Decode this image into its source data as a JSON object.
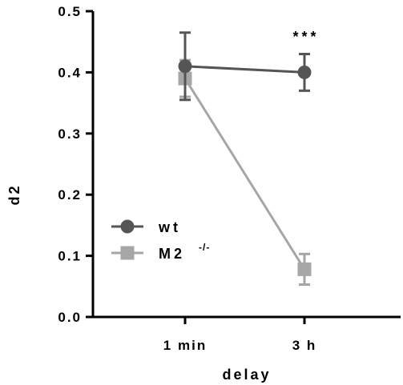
{
  "chart_data": {
    "type": "line",
    "categories": [
      "1 min",
      "3 h"
    ],
    "xlabel": "delay",
    "ylabel": "d2",
    "ylim": [
      0,
      0.5
    ],
    "yticks": [
      "0.0",
      "0.1",
      "0.2",
      "0.3",
      "0.4",
      "0.5"
    ],
    "grid": false,
    "legend_position": "bottom-left",
    "series": [
      {
        "name": "wt",
        "marker": "circle",
        "color": "#555555",
        "values": [
          0.41,
          0.4
        ],
        "error": [
          0.055,
          0.03
        ]
      },
      {
        "name": "M2",
        "name_superscript": "-/-",
        "marker": "square",
        "color": "#a6a6a6",
        "values": [
          0.39,
          0.078
        ],
        "error": [
          0.03,
          0.025
        ]
      }
    ],
    "annotations": [
      {
        "text": "***",
        "category": "3 h"
      }
    ]
  }
}
